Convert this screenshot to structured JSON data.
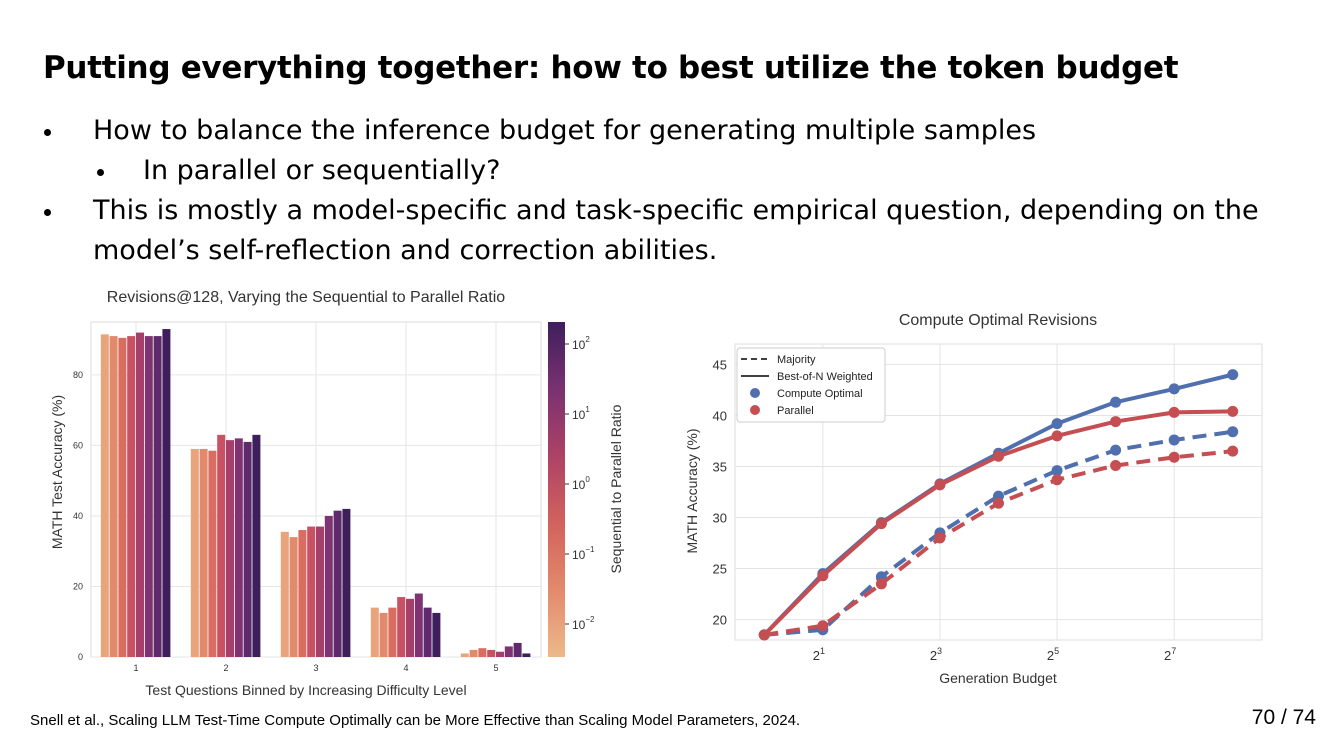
{
  "slide": {
    "title": "Putting everything together: how to best utilize the token budget",
    "bullets": [
      {
        "text": "How to balance the inference budget for generating multiple samples",
        "level": 1
      },
      {
        "text": "In parallel or sequentially?",
        "level": 2
      },
      {
        "text": "This is mostly a model-specific and task-specific empirical question, depending on the",
        "level": 1
      },
      {
        "text": "model’s self-reflection and correction abilities.",
        "level": 0
      }
    ],
    "footer": "Snell et al., Scaling LLM Test-Time Compute Optimally can be More Effective than Scaling Model Parameters, 2024.",
    "page_number": "70 / 74"
  },
  "chart_data": [
    {
      "type": "bar",
      "title": "Revisions@128, Varying the Sequential to Parallel Ratio",
      "xlabel": "Test Questions Binned by Increasing Difficulty Level",
      "ylabel": "MATH Test Accuracy (%)",
      "categories": [
        "1",
        "2",
        "3",
        "4",
        "5"
      ],
      "ylim": [
        0,
        95
      ],
      "yticks": [
        "0",
        "20",
        "40",
        "60",
        "80"
      ],
      "grid": true,
      "colorbar": {
        "label": "Sequential to Parallel Ratio",
        "ticks": [
          "10",
          "10",
          "10",
          "10",
          "10"
        ],
        "tick_exponents": [
          "−2",
          "−1",
          "0",
          "1",
          "2"
        ]
      },
      "series_colors": [
        "#e8a57c",
        "#e28a6c",
        "#d96d5f",
        "#c85163",
        "#a73f6b",
        "#803372",
        "#5e2a6b",
        "#3e1f5c"
      ],
      "values": [
        [
          91.5,
          91,
          90.5,
          91,
          92,
          91,
          91,
          93
        ],
        [
          59,
          59,
          58.5,
          63,
          61.5,
          62,
          61,
          63
        ],
        [
          35.5,
          34,
          36,
          37,
          37,
          40,
          41.5,
          42
        ],
        [
          14,
          12.5,
          14,
          17,
          16.5,
          18,
          14,
          12.5
        ],
        [
          1,
          2,
          2.5,
          2,
          1.5,
          3,
          4,
          1
        ]
      ]
    },
    {
      "type": "line",
      "title": "Compute Optimal Revisions",
      "xlabel": "Generation Budget",
      "ylabel": "MATH Accuracy (%)",
      "x": [
        1,
        2,
        4,
        8,
        16,
        32,
        64,
        128,
        256
      ],
      "xscale": "log2",
      "xticks": [
        {
          "base": "2",
          "exp": "1"
        },
        {
          "base": "2",
          "exp": "3"
        },
        {
          "base": "2",
          "exp": "5"
        },
        {
          "base": "2",
          "exp": "7"
        }
      ],
      "ylim": [
        18,
        47
      ],
      "yticks": [
        "20",
        "25",
        "30",
        "35",
        "40",
        "45"
      ],
      "grid": true,
      "legend_position": "top-left",
      "legend": [
        {
          "label": "Majority",
          "kind": "dashed-line"
        },
        {
          "label": "Best-of-N Weighted",
          "kind": "solid-line"
        },
        {
          "label": "Compute Optimal",
          "kind": "dot",
          "color": "#4f6fae"
        },
        {
          "label": "Parallel",
          "kind": "dot",
          "color": "#c44e52"
        }
      ],
      "series": [
        {
          "name": "Compute Optimal",
          "style": "solid",
          "color": "#4f6fae",
          "values": [
            18.5,
            24.5,
            29.5,
            33.3,
            36.3,
            39.2,
            41.3,
            42.6,
            44.0
          ]
        },
        {
          "name": "Parallel",
          "style": "solid",
          "color": "#c44e52",
          "values": [
            18.5,
            24.3,
            29.4,
            33.2,
            36.0,
            38.0,
            39.4,
            40.3,
            40.4
          ]
        },
        {
          "name": "Compute Optimal",
          "style": "dashed",
          "color": "#4f6fae",
          "values": [
            18.5,
            19.0,
            24.2,
            28.5,
            32.1,
            34.6,
            36.6,
            37.6,
            38.4
          ]
        },
        {
          "name": "Parallel",
          "style": "dashed",
          "color": "#c44e52",
          "values": [
            18.5,
            19.4,
            23.5,
            28.0,
            31.4,
            33.7,
            35.1,
            35.9,
            36.5
          ]
        }
      ]
    }
  ]
}
